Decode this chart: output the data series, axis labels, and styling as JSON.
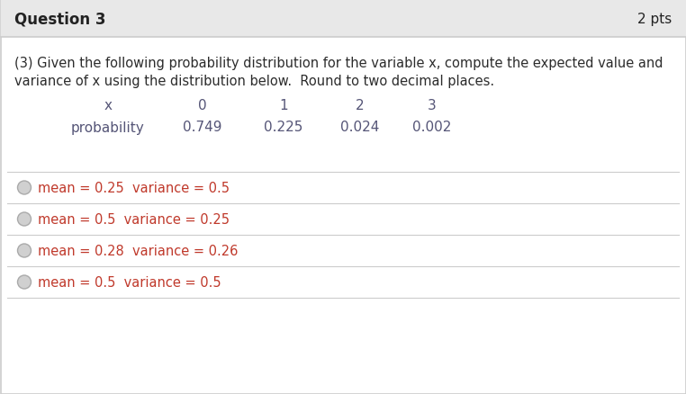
{
  "title": "Question 3",
  "pts": "2 pts",
  "header_bg": "#e8e8e8",
  "body_bg": "#ffffff",
  "border_color": "#cccccc",
  "question_text_line1": "(3) Given the following probability distribution for the variable x, compute the expected value and",
  "question_text_line2": "variance of x using the distribution below.  Round to two decimal places.",
  "table_header": [
    "x",
    "0",
    "1",
    "2",
    "3"
  ],
  "table_row": [
    "probability",
    "0.749",
    "0.225",
    "0.024",
    "0.002"
  ],
  "options": [
    "mean = 0.25  variance = 0.5",
    "mean = 0.5  variance = 0.25",
    "mean = 0.28  variance = 0.26",
    "mean = 0.5  variance = 0.5"
  ],
  "title_fontsize": 12,
  "pts_fontsize": 11,
  "body_fontsize": 10.5,
  "table_fontsize": 11,
  "option_fontsize": 10.5,
  "text_color": "#2c2c2c",
  "table_color": "#555577",
  "option_text_color": "#c0392b",
  "divider_color": "#cccccc",
  "circle_color": "#aaaaaa",
  "header_text_color": "#222222"
}
